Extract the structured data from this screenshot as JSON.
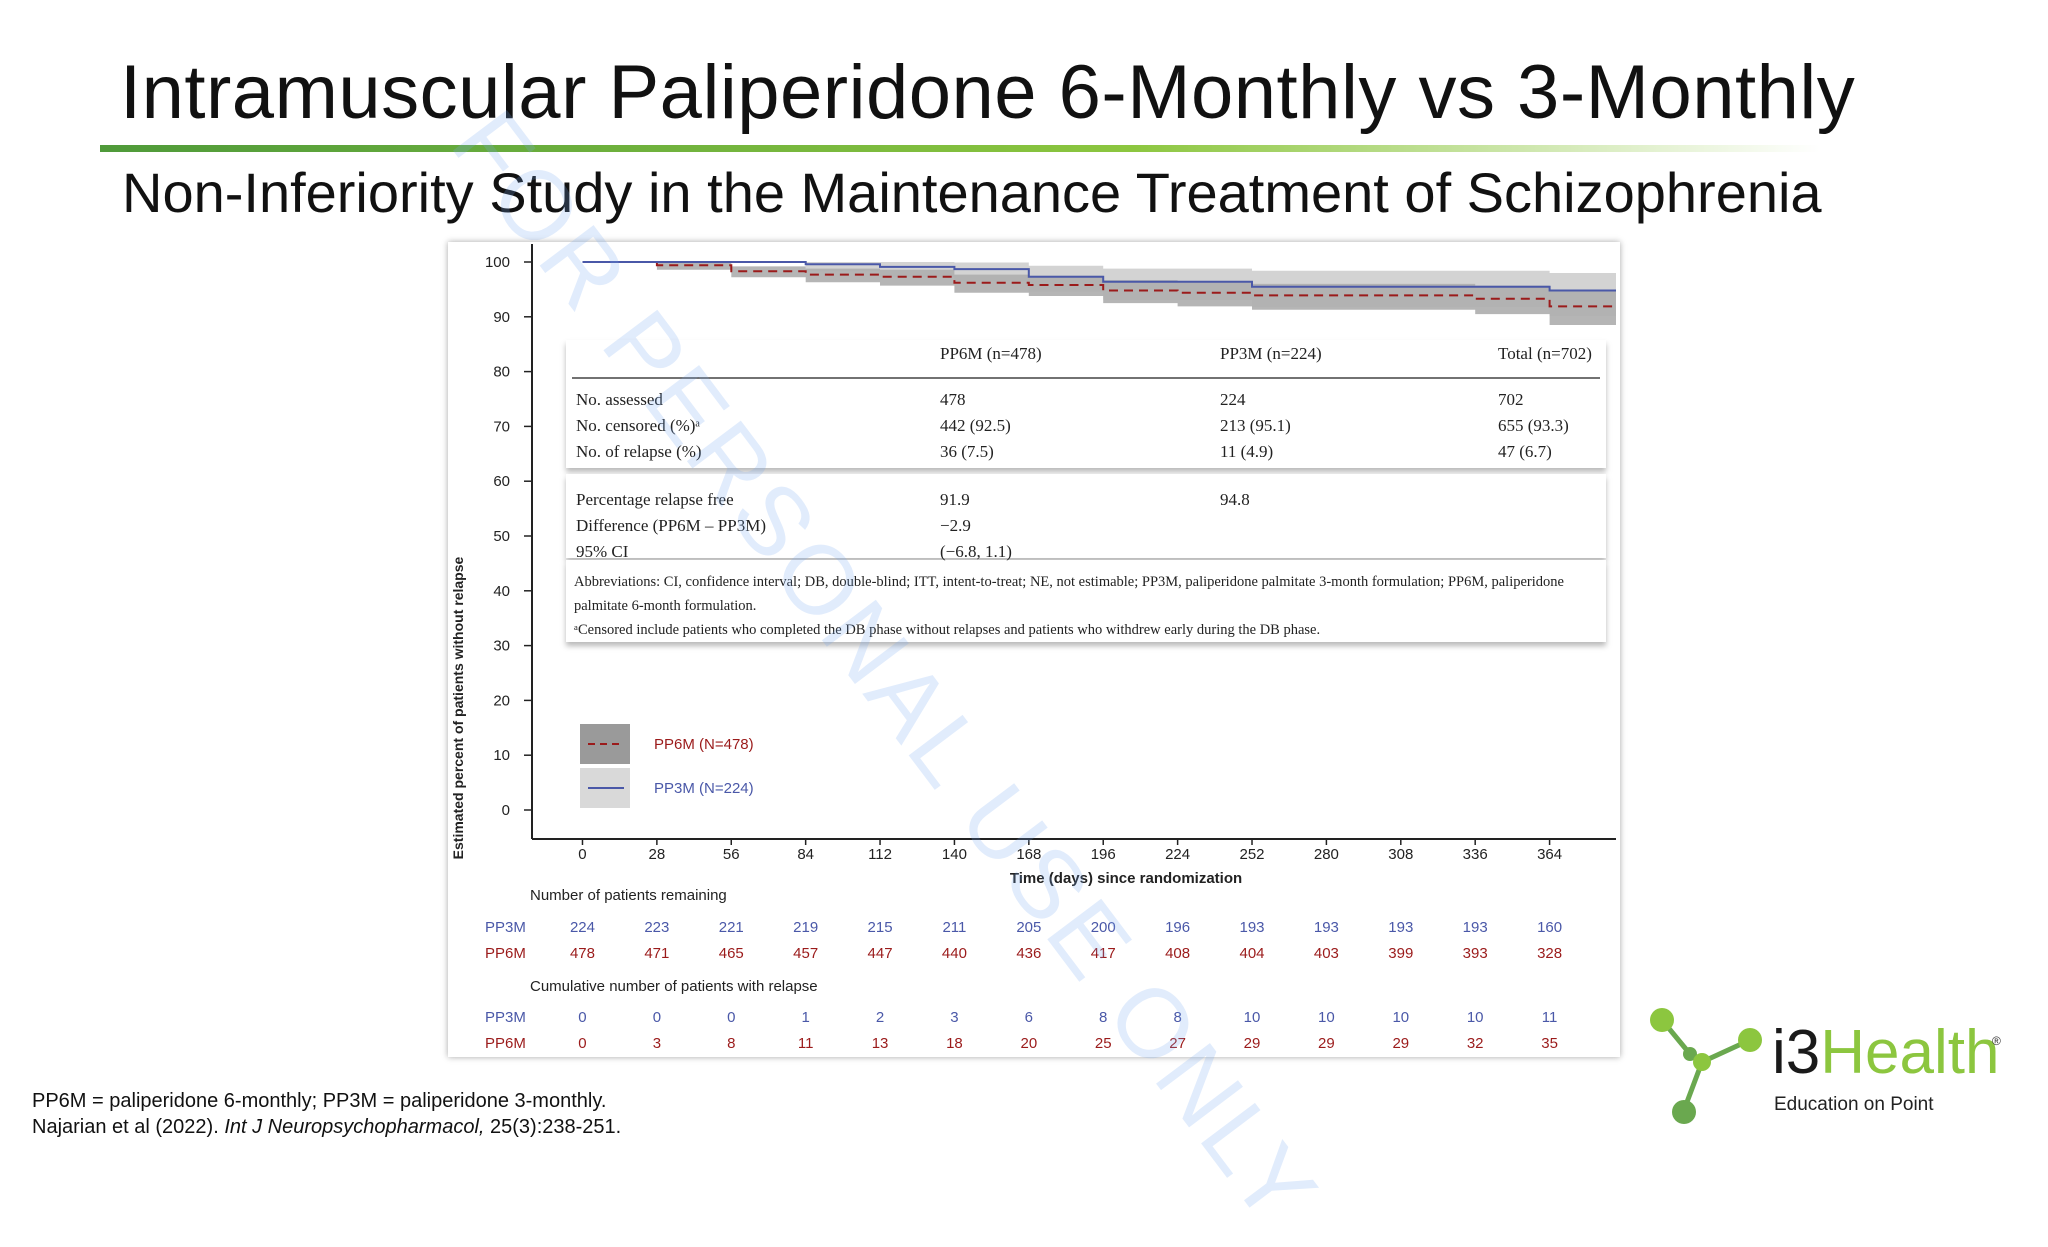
{
  "slide": {
    "title": "Intramuscular Paliperidone 6-Monthly vs 3-Monthly",
    "subtitle": "Non-Inferiority Study in the Maintenance Treatment of Schizophrenia",
    "footnote_line1": "PP6M = paliperidone 6-monthly; PP3M = paliperidone 3-monthly.",
    "footnote_authors": "Najarian et al (2022). ",
    "footnote_journal": "Int J Neuropsychopharmacol,",
    "footnote_ref": " 25(3):238-251.",
    "watermark": "FOR PERSONAL USE ONLY",
    "logo_i3": "i3",
    "logo_health": "Health",
    "logo_reg": "®",
    "logo_tagline": "Education on Point",
    "colors": {
      "accent_green": "#8cc63f",
      "pp6m": "#9b1b1b",
      "pp3m": "#4a58a8"
    }
  },
  "chart_data": {
    "type": "line",
    "xlabel": "Time (days) since randomization",
    "ylabel": "Estimated percent of patients without relapse",
    "x_ticks": [
      0,
      28,
      56,
      84,
      112,
      140,
      168,
      196,
      224,
      252,
      280,
      308,
      336,
      364
    ],
    "y_ticks": [
      0,
      10,
      20,
      30,
      40,
      50,
      60,
      70,
      80,
      90,
      100
    ],
    "xlim": [
      -19,
      389
    ],
    "ylim": [
      0,
      100
    ],
    "legend_position": "bottom-left",
    "series": [
      {
        "name": "PP6M (N=478)",
        "style": "dashed",
        "color": "#9b1b1b",
        "x": [
          0,
          28,
          56,
          84,
          112,
          140,
          168,
          196,
          224,
          252,
          280,
          308,
          336,
          364,
          389
        ],
        "y": [
          100,
          99.4,
          98.3,
          97.7,
          97.3,
          96.2,
          95.8,
          94.8,
          94.4,
          93.9,
          93.9,
          93.9,
          93.3,
          91.9,
          91.9
        ],
        "ci_lower": [
          100,
          98.6,
          97.2,
          96.3,
          95.7,
          94.4,
          93.8,
          92.5,
          91.9,
          91.3,
          91.3,
          91.3,
          90.5,
          88.5,
          88.5
        ],
        "ci_upper": [
          100,
          99.9,
          99.2,
          98.8,
          98.6,
          97.7,
          97.5,
          96.7,
          96.4,
          96.0,
          96.0,
          96.0,
          95.7,
          94.8,
          94.8
        ]
      },
      {
        "name": "PP3M (N=224)",
        "style": "solid",
        "color": "#4a58a8",
        "x": [
          0,
          28,
          56,
          84,
          112,
          140,
          168,
          196,
          224,
          252,
          280,
          308,
          336,
          364,
          389
        ],
        "y": [
          100,
          100,
          100,
          99.6,
          99.1,
          98.7,
          97.3,
          96.4,
          96.4,
          95.5,
          95.5,
          95.5,
          95.5,
          94.8,
          94.8
        ],
        "ci_lower": [
          100,
          100,
          100,
          98.3,
          97.3,
          96.5,
          94.6,
          93.1,
          93.1,
          91.8,
          91.8,
          91.8,
          91.8,
          90.2,
          90.2
        ],
        "ci_upper": [
          100,
          100,
          100,
          100,
          100,
          99.9,
          99.3,
          98.8,
          98.8,
          98.4,
          98.4,
          98.4,
          98.4,
          98.0,
          98.0
        ]
      }
    ],
    "risk_table": {
      "heading_remaining": "Number of patients remaining",
      "heading_relapse": "Cumulative number of patients with relapse",
      "remaining": {
        "PP3M": [
          224,
          223,
          221,
          219,
          215,
          211,
          205,
          200,
          196,
          193,
          193,
          193,
          193,
          160
        ],
        "PP6M": [
          478,
          471,
          465,
          457,
          447,
          440,
          436,
          417,
          408,
          404,
          403,
          399,
          393,
          328
        ]
      },
      "relapse": {
        "PP3M": [
          0,
          0,
          0,
          1,
          2,
          3,
          6,
          8,
          8,
          10,
          10,
          10,
          10,
          11
        ],
        "PP6M": [
          0,
          3,
          8,
          11,
          13,
          18,
          20,
          25,
          27,
          29,
          29,
          29,
          32,
          35
        ]
      }
    },
    "inset_table": {
      "columns": [
        "",
        "PP6M (n=478)",
        "PP3M (n=224)",
        "Total (n=702)"
      ],
      "rows_top": [
        [
          "No. assessed",
          "478",
          "224",
          "702"
        ],
        [
          "No. censored (%)ᵃ",
          "442 (92.5)",
          "213 (95.1)",
          "655 (93.3)"
        ],
        [
          "No. of relapse (%)",
          "36 (7.5)",
          "11 (4.9)",
          "47 (6.7)"
        ]
      ],
      "rows_bottom": [
        [
          "Percentage relapse free",
          "91.9",
          "94.8",
          ""
        ],
        [
          "Difference (PP6M – PP3M)",
          "−2.9",
          "",
          ""
        ],
        [
          "95% CI",
          "(−6.8, 1.1)",
          "",
          ""
        ]
      ],
      "abbreviations": "Abbreviations: CI, confidence interval; DB, double-blind; ITT, intent-to-treat; NE, not estimable; PP3M, paliperidone palmitate 3-month formulation; PP6M, paliperidone",
      "abbreviations_cont": "palmitate 6-month formulation.",
      "censor_note": "ᵃCensored include patients who completed the DB phase without relapses and patients who withdrew early during the DB phase."
    }
  }
}
